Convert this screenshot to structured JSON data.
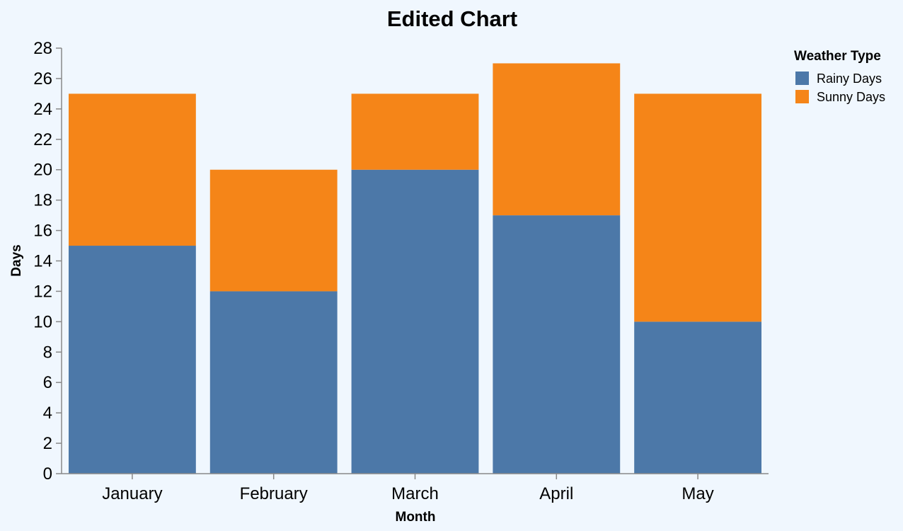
{
  "chart_data": {
    "type": "bar",
    "stacked": true,
    "title": "Edited Chart",
    "xlabel": "Month",
    "ylabel": "Days",
    "ylim": [
      0,
      28
    ],
    "ytick_step": 2,
    "grid": false,
    "categories": [
      "January",
      "February",
      "March",
      "April",
      "May"
    ],
    "series": [
      {
        "name": "Rainy Days",
        "color": "#4c78a8",
        "values": [
          15,
          12,
          20,
          17,
          10
        ]
      },
      {
        "name": "Sunny Days",
        "color": "#f58518",
        "values": [
          10,
          8,
          5,
          10,
          15
        ]
      }
    ],
    "legend": {
      "title": "Weather Type",
      "position": "top-right"
    }
  }
}
